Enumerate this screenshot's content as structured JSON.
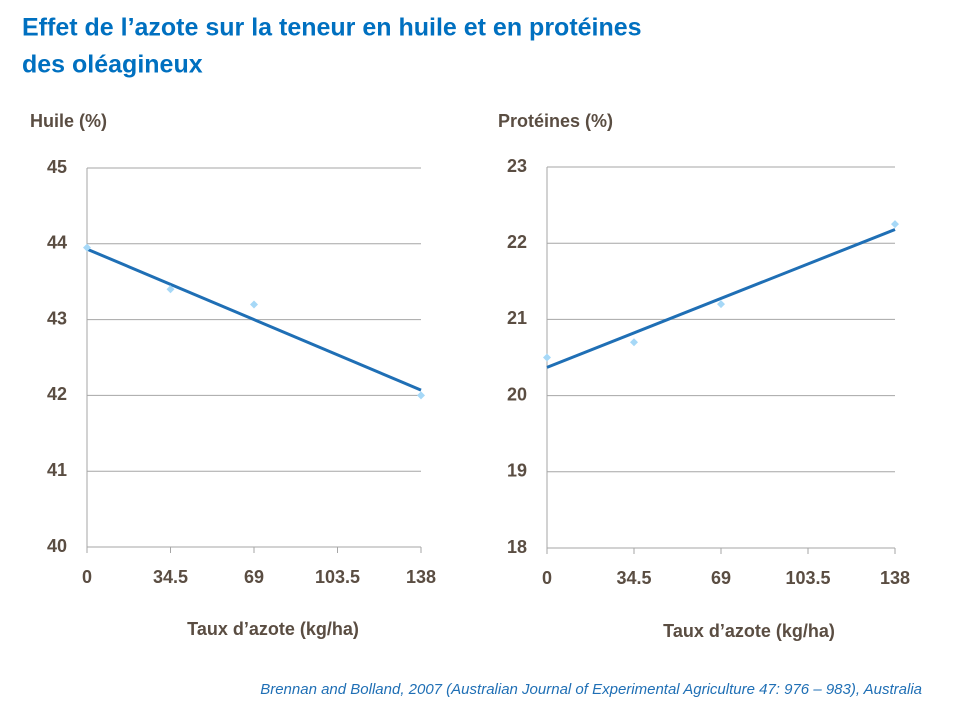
{
  "header": {
    "title_line1": "Effet de l’azote sur la teneur en huile et en protéines",
    "title_line2": "des oléagineux"
  },
  "chart_data": [
    {
      "type": "scatter",
      "ylabel": "Huile (%)",
      "xlabel": "Taux d’azote (kg/ha)",
      "xlim": [
        0,
        138
      ],
      "xticks": [
        0,
        34.5,
        69,
        103.5,
        138
      ],
      "ylim": [
        40,
        45
      ],
      "yticks": [
        40,
        41,
        42,
        43,
        44,
        45
      ],
      "grid": true,
      "series": [
        {
          "color": "#a6d8f7",
          "x": [
            0,
            34.5,
            69,
            138
          ],
          "values": [
            43.95,
            43.4,
            43.2,
            42.0
          ]
        }
      ],
      "trend": {
        "color": "#1f6fb5",
        "x": [
          0,
          138
        ],
        "values": [
          43.93,
          42.07
        ]
      }
    },
    {
      "type": "scatter",
      "ylabel": "Protéines (%)",
      "xlabel": "Taux d’azote (kg/ha)",
      "xlim": [
        0,
        138
      ],
      "xticks": [
        0,
        34.5,
        69,
        103.5,
        138
      ],
      "ylim": [
        18,
        23
      ],
      "yticks": [
        18,
        19,
        20,
        21,
        22,
        23
      ],
      "grid": true,
      "series": [
        {
          "color": "#a6d8f7",
          "x": [
            0,
            34.5,
            69,
            138
          ],
          "values": [
            20.5,
            20.7,
            21.2,
            22.25
          ]
        }
      ],
      "trend": {
        "color": "#1f6fb5",
        "x": [
          0,
          138
        ],
        "values": [
          20.37,
          22.18
        ]
      }
    }
  ],
  "footer": {
    "source": "Brennan and Bolland, 2007 (Australian Journal of Experimental Agriculture 47: 976 – 983), Australia"
  }
}
